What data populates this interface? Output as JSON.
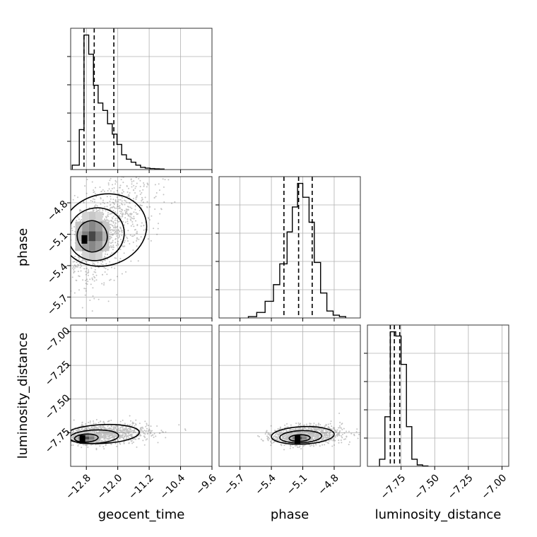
{
  "chart_data": {
    "type": "corner",
    "parameters": [
      {
        "name": "geocent_time",
        "label": "geocent_time",
        "range": [
          -13.2,
          -9.6
        ],
        "ticks": [
          -12.8,
          -12.0,
          -11.2,
          -10.4,
          -9.6
        ],
        "tick_labels": [
          "−12.8",
          "−12.0",
          "−11.2",
          "−10.4",
          "−9.6"
        ],
        "quantiles": [
          -12.86,
          -12.6,
          -12.1
        ],
        "histogram": {
          "edges": [
            -13.16,
            -12.98,
            -12.86,
            -12.74,
            -12.62,
            -12.5,
            -12.38,
            -12.26,
            -12.14,
            -12.02,
            -11.9,
            -11.78,
            -11.66,
            -11.54,
            -11.42,
            -11.3,
            -11.18,
            -11.06,
            -10.94,
            -10.82
          ],
          "counts": [
            0.03,
            0.27,
            0.91,
            0.78,
            0.57,
            0.45,
            0.4,
            0.31,
            0.24,
            0.17,
            0.1,
            0.07,
            0.05,
            0.03,
            0.015,
            0.01,
            0.007,
            0.005,
            0.004
          ]
        }
      },
      {
        "name": "phase",
        "label": "phase",
        "range": [
          -5.9,
          -4.55
        ],
        "ticks": [
          -5.7,
          -5.4,
          -5.1,
          -4.8
        ],
        "tick_labels": [
          "−5.7",
          "−5.4",
          "−5.1",
          "−4.8"
        ],
        "quantiles": [
          -5.28,
          -5.14,
          -5.01
        ],
        "histogram": {
          "edges": [
            -5.62,
            -5.54,
            -5.46,
            -5.38,
            -5.32,
            -5.25,
            -5.2,
            -5.15,
            -5.1,
            -5.04,
            -4.99,
            -4.93,
            -4.87,
            -4.81,
            -4.75,
            -4.69
          ],
          "counts": [
            0.01,
            0.04,
            0.12,
            0.24,
            0.39,
            0.62,
            0.8,
            0.97,
            0.87,
            0.69,
            0.4,
            0.18,
            0.05,
            0.02,
            0.01
          ]
        }
      },
      {
        "name": "luminosity_distance",
        "label": "luminosity_distance",
        "range": [
          -8.0,
          -6.95
        ],
        "ticks": [
          -7.75,
          -7.5,
          -7.25,
          -7.0
        ],
        "tick_labels": [
          "−7.75",
          "−7.50",
          "−7.25",
          "−7.00"
        ],
        "quantiles": [
          -7.83,
          -7.8,
          -7.76
        ],
        "histogram": {
          "edges": [
            -7.91,
            -7.87,
            -7.83,
            -7.79,
            -7.75,
            -7.71,
            -7.67,
            -7.63,
            -7.59,
            -7.55
          ],
          "counts": [
            0.05,
            0.35,
            0.95,
            0.92,
            0.72,
            0.28,
            0.05,
            0.01,
            0.003
          ]
        }
      }
    ],
    "pairs": [
      {
        "x": "geocent_time",
        "y": "phase",
        "peak": [
          -12.85,
          -5.15
        ],
        "contours": [
          {
            "center": [
              -12.65,
              -5.12
            ],
            "rx": 0.38,
            "ry": 0.15,
            "tilt": 0.55
          },
          {
            "center": [
              -12.55,
              -5.1
            ],
            "rx": 0.72,
            "ry": 0.25,
            "tilt": 0.5
          },
          {
            "center": [
              -12.35,
              -5.06
            ],
            "rx": 1.1,
            "ry": 0.34,
            "tilt": 0.45
          }
        ]
      },
      {
        "x": "geocent_time",
        "y": "luminosity_distance",
        "peak": [
          -12.9,
          -7.8
        ],
        "contours": [
          {
            "center": [
              -12.8,
              -7.79
            ],
            "rx": 0.3,
            "ry": 0.03,
            "tilt": 0.08
          },
          {
            "center": [
              -12.6,
              -7.78
            ],
            "rx": 0.62,
            "ry": 0.05,
            "tilt": 0.08
          },
          {
            "center": [
              -12.4,
              -7.76
            ],
            "rx": 0.95,
            "ry": 0.07,
            "tilt": 0.08
          }
        ]
      },
      {
        "x": "phase",
        "y": "luminosity_distance",
        "peak": [
          -5.15,
          -7.8
        ],
        "contours": [
          {
            "center": [
              -5.13,
              -7.79
            ],
            "rx": 0.1,
            "ry": 0.025,
            "tilt": 0.05
          },
          {
            "center": [
              -5.12,
              -7.78
            ],
            "rx": 0.2,
            "ry": 0.045,
            "tilt": 0.07
          },
          {
            "center": [
              -5.1,
              -7.77
            ],
            "rx": 0.3,
            "ry": 0.065,
            "tilt": 0.07
          }
        ]
      }
    ],
    "grid": true
  }
}
